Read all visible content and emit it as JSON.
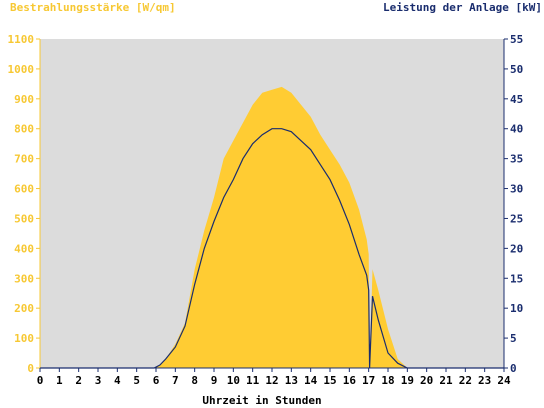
{
  "chart_data": {
    "type": "area",
    "y_left_label": "Bestrahlungsstärke [W/qm]",
    "y_right_label": "Leistung der Anlage [kW]",
    "xlabel": "Uhrzeit in Stunden",
    "x_ticks": [
      "0",
      "1",
      "2",
      "3",
      "4",
      "5",
      "6",
      "7",
      "8",
      "9",
      "10",
      "11",
      "12",
      "13",
      "14",
      "15",
      "16",
      "17",
      "18",
      "19",
      "20",
      "21",
      "22",
      "23",
      "24"
    ],
    "y_left_ticks": [
      "0",
      "100",
      "200",
      "300",
      "400",
      "500",
      "600",
      "700",
      "800",
      "900",
      "1000",
      "1100"
    ],
    "y_right_ticks": [
      "0",
      "5",
      "10",
      "15",
      "20",
      "25",
      "30",
      "35",
      "40",
      "45",
      "50",
      "55"
    ],
    "xlim": [
      0,
      24
    ],
    "y_left_lim": [
      0,
      1100
    ],
    "y_right_lim": [
      0,
      55
    ],
    "series": [
      {
        "name": "Bestrahlungsstärke [W/qm]",
        "axis": "left",
        "color": "#ffcc33",
        "x": [
          0,
          5.9,
          6.2,
          6.5,
          7,
          7.5,
          8,
          8.5,
          9,
          9.5,
          10,
          10.5,
          11,
          11.5,
          12,
          12.5,
          13,
          13.5,
          14,
          14.5,
          15,
          15.5,
          16,
          16.5,
          16.9,
          17.0,
          17.05,
          17.2,
          17.5,
          18,
          18.5,
          19,
          24
        ],
        "y": [
          0,
          0,
          10,
          30,
          80,
          150,
          330,
          460,
          570,
          700,
          760,
          820,
          880,
          920,
          930,
          940,
          920,
          880,
          840,
          780,
          730,
          680,
          620,
          530,
          430,
          380,
          0,
          330,
          260,
          130,
          30,
          0,
          0
        ]
      },
      {
        "name": "Leistung der Anlage [kW]",
        "axis": "right",
        "color": "#1a2d6e",
        "x": [
          0,
          5.9,
          6.2,
          6.5,
          7,
          7.5,
          8,
          8.5,
          9,
          9.5,
          10,
          10.5,
          11,
          11.5,
          12,
          12.5,
          13,
          13.5,
          14,
          14.5,
          15,
          15.5,
          16,
          16.5,
          16.9,
          17.0,
          17.05,
          17.2,
          17.5,
          18,
          18.5,
          19,
          24
        ],
        "y": [
          0,
          0,
          0.5,
          1.5,
          3.5,
          7,
          14,
          20,
          24.5,
          28.5,
          31.5,
          35,
          37.5,
          39,
          40,
          40,
          39.5,
          38,
          36.5,
          34,
          31.5,
          28,
          24,
          19,
          15.5,
          13,
          0,
          12,
          8,
          2.5,
          0.8,
          0,
          0
        ]
      }
    ],
    "colors": {
      "background": "#dcdcdc",
      "irradiance": "#ffcc33",
      "power": "#1a2d6e",
      "left_axis_text": "#f7c833",
      "right_axis_text": "#1a2d6e"
    }
  }
}
